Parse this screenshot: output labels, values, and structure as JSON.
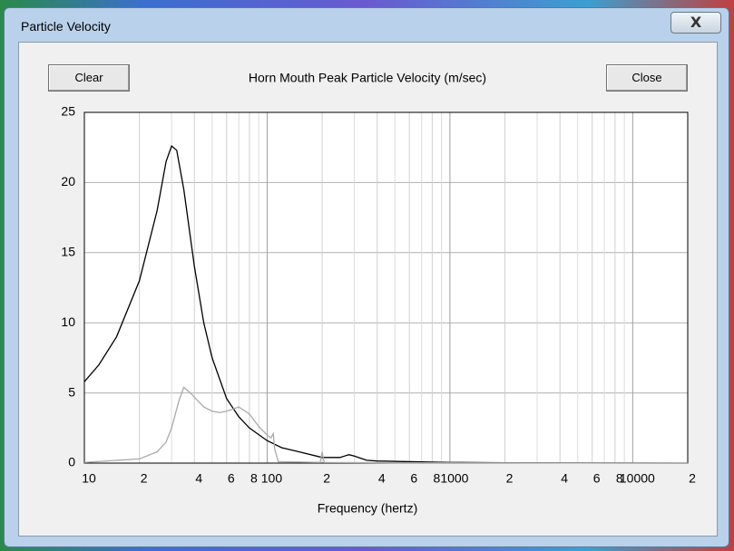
{
  "window": {
    "title": "Particle Velocity"
  },
  "buttons": {
    "clear": "Clear",
    "close": "Close"
  },
  "chart_data": {
    "type": "line",
    "title": "Horn Mouth Peak Particle Velocity (m/sec)",
    "x_label": "Frequency (hertz)",
    "xscale": "log",
    "xlim": [
      10,
      20000
    ],
    "ylim": [
      0,
      25
    ],
    "yticks": [
      0,
      5,
      10,
      15,
      20,
      25
    ],
    "xticks": [
      10,
      {
        "value": 20,
        "label": "2"
      },
      {
        "value": 40,
        "label": "4"
      },
      {
        "value": 60,
        "label": "6"
      },
      {
        "value": 80,
        "label": "8"
      },
      100,
      {
        "value": 200,
        "label": "2"
      },
      {
        "value": 400,
        "label": "4"
      },
      {
        "value": 600,
        "label": "6"
      },
      {
        "value": 800,
        "label": "8"
      },
      1000,
      {
        "value": 2000,
        "label": "2"
      },
      {
        "value": 4000,
        "label": "4"
      },
      {
        "value": 6000,
        "label": "6"
      },
      {
        "value": 8000,
        "label": "8"
      },
      10000,
      {
        "value": 20000,
        "label": "2"
      }
    ],
    "x_minor_gridlines": [
      30,
      50,
      70,
      90,
      300,
      500,
      700,
      900,
      3000,
      5000,
      7000,
      9000
    ],
    "grid": true,
    "series": [
      {
        "color": "#000000",
        "x": [
          10,
          12,
          15,
          20,
          25,
          28,
          30,
          32,
          35,
          40,
          45,
          50,
          60,
          70,
          80,
          100,
          120,
          150,
          200,
          250,
          280,
          300,
          350,
          400,
          600,
          1000,
          2000,
          20000
        ],
        "values": [
          5.8,
          7.0,
          9.0,
          13,
          18,
          21.5,
          22.6,
          22.3,
          19.5,
          14,
          10,
          7.5,
          4.6,
          3.3,
          2.5,
          1.6,
          1.1,
          0.8,
          0.4,
          0.4,
          0.6,
          0.5,
          0.2,
          0.15,
          0.1,
          0.05,
          0.02,
          0
        ]
      },
      {
        "color": "#aaaaaa",
        "x": [
          10,
          20,
          25,
          28,
          30,
          33,
          35,
          38,
          45,
          50,
          55,
          60,
          70,
          80,
          90,
          100,
          105,
          108,
          110,
          115,
          195,
          200,
          205,
          500,
          20000
        ],
        "values": [
          0.05,
          0.3,
          0.8,
          1.5,
          2.5,
          4.5,
          5.4,
          5.0,
          4.0,
          3.7,
          3.6,
          3.7,
          4.0,
          3.5,
          2.6,
          2.0,
          1.8,
          2.1,
          1.0,
          0.1,
          0.05,
          0.8,
          0.05,
          0.02,
          0
        ]
      }
    ]
  }
}
